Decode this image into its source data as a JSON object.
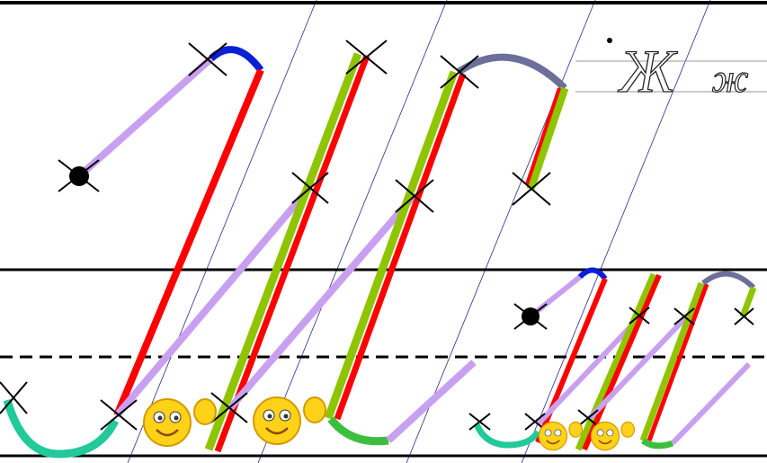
{
  "sample": {
    "upper": "Ж",
    "lower": "ж"
  }
}
